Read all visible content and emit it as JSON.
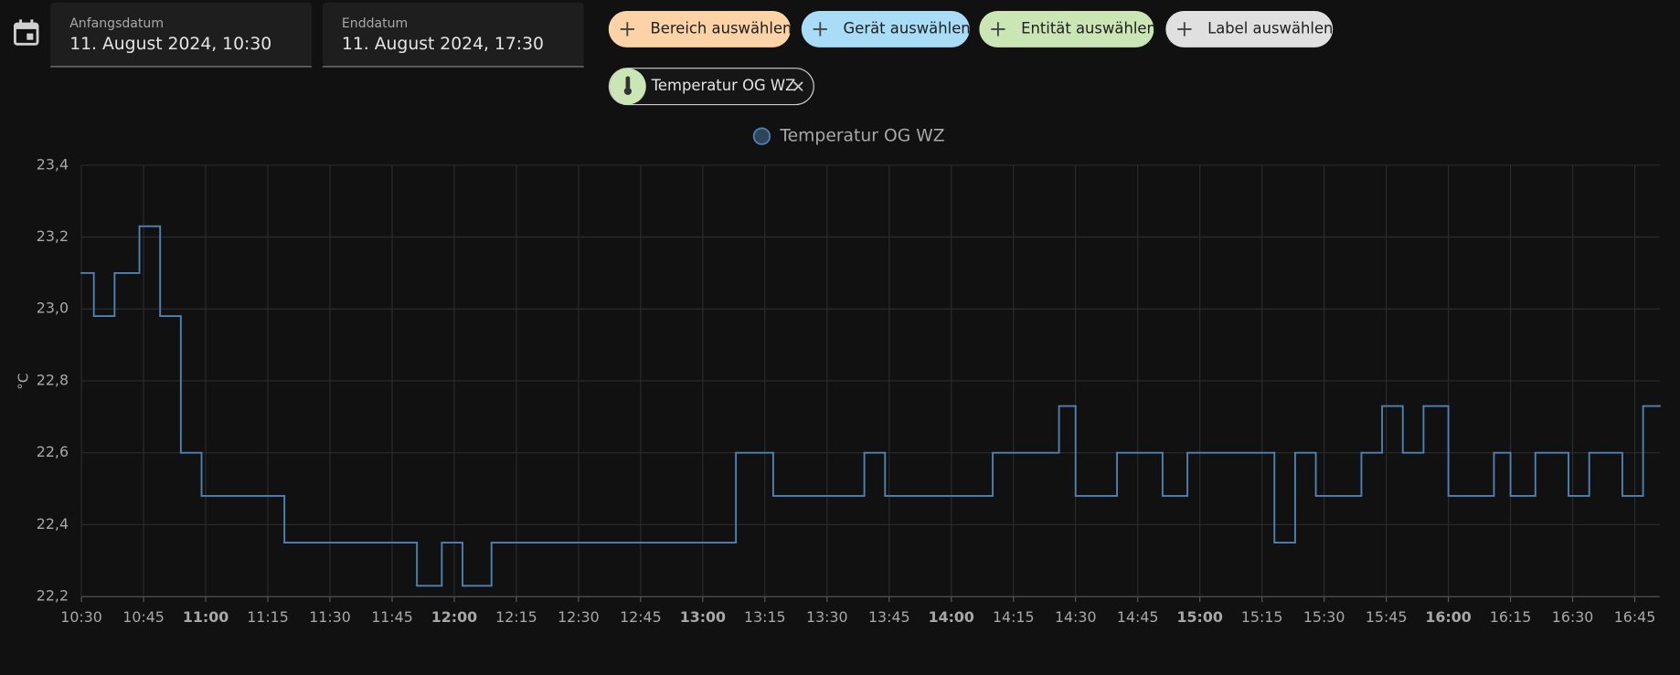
{
  "date_picker": {
    "start_label": "Anfangsdatum",
    "start_value": "11. August 2024, 10:30",
    "end_label": "Enddatum",
    "end_value": "11. August 2024, 17:30"
  },
  "target_pickers": [
    "Bereich auswählen",
    "Gerät auswählen",
    "Entität auswählen",
    "Label auswählen"
  ],
  "selected_entity": "Temperatur OG WZ",
  "chart_data": {
    "type": "step-line",
    "y_label": "°C",
    "x": [
      "10:30",
      "10:33",
      "10:38",
      "10:44",
      "10:49",
      "10:54",
      "10:59",
      "11:19",
      "11:51",
      "11:57",
      "12:02",
      "12:09",
      "13:08",
      "13:17",
      "13:39",
      "13:44",
      "14:10",
      "14:26",
      "14:30",
      "14:40",
      "14:51",
      "14:57",
      "15:18",
      "15:23",
      "15:28",
      "15:39",
      "15:44",
      "15:49",
      "15:54",
      "16:00",
      "16:11",
      "16:15",
      "16:21",
      "16:29",
      "16:34",
      "16:42",
      "16:47",
      "16:51"
    ],
    "series": [
      {
        "name": "Temperatur OG WZ",
        "color": "#4f82b5",
        "values": [
          23.1,
          22.98,
          23.1,
          23.23,
          22.98,
          22.6,
          22.48,
          22.35,
          22.23,
          22.35,
          22.23,
          22.35,
          22.6,
          22.48,
          22.6,
          22.48,
          22.6,
          22.73,
          22.48,
          22.6,
          22.48,
          22.6,
          22.35,
          22.6,
          22.48,
          22.6,
          22.73,
          22.6,
          22.73,
          22.48,
          22.6,
          22.48,
          22.6,
          22.48,
          22.6,
          22.48,
          22.73,
          22.73
        ]
      }
    ],
    "xlim": [
      "10:30",
      "16:51"
    ],
    "xticks": [
      "10:30",
      "10:45",
      "11:00",
      "11:15",
      "11:30",
      "11:45",
      "12:00",
      "12:15",
      "12:30",
      "12:45",
      "13:00",
      "13:15",
      "13:30",
      "13:45",
      "14:00",
      "14:15",
      "14:30",
      "14:45",
      "15:00",
      "15:15",
      "15:30",
      "15:45",
      "16:00",
      "16:15",
      "16:30",
      "16:45"
    ],
    "ylim": [
      22.2,
      23.4
    ],
    "yticks": [
      {
        "value": 22.2,
        "label": "22,2"
      },
      {
        "value": 22.4,
        "label": "22,4"
      },
      {
        "value": 22.6,
        "label": "22,6"
      },
      {
        "value": 22.8,
        "label": "22,8"
      },
      {
        "value": 23.0,
        "label": "23,0"
      },
      {
        "value": 23.2,
        "label": "23,2"
      },
      {
        "value": 23.4,
        "label": "23,4"
      }
    ],
    "grid": true
  }
}
